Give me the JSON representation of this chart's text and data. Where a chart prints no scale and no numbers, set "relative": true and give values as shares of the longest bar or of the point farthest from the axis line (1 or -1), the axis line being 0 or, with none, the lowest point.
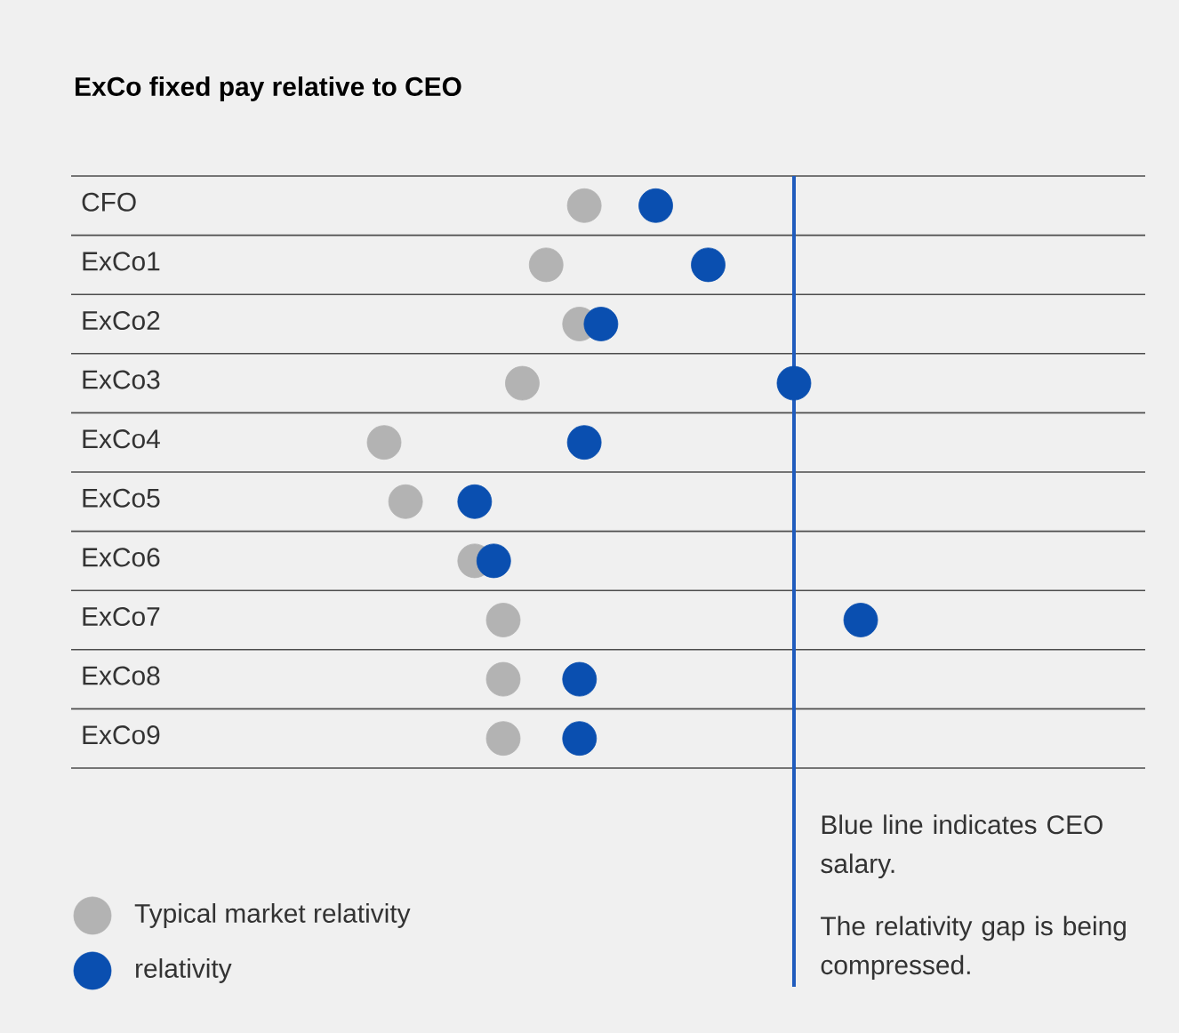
{
  "chart_data": {
    "type": "scatter",
    "orientation": "horizontal",
    "relative": true,
    "title": "ExCo fixed pay relative to CEO",
    "categories": [
      "CFO",
      "ExCo1",
      "ExCo2",
      "ExCo3",
      "ExCo4",
      "ExCo5",
      "ExCo6",
      "ExCo7",
      "ExCo8",
      "ExCo9"
    ],
    "series": [
      {
        "name": "Typical market relativity",
        "color": "#b3b3b3",
        "values": [
          0.42,
          0.34,
          0.41,
          0.29,
          0,
          0.045,
          0.19,
          0.25,
          0.25,
          0.25
        ]
      },
      {
        "name": "relativity",
        "color": "#0a4fb0",
        "values": [
          0.57,
          0.68,
          0.455,
          0.86,
          0.42,
          0.19,
          0.23,
          1,
          0.41,
          0.41
        ]
      }
    ],
    "ref_lines": [
      {
        "axis": "x",
        "value": 0.86,
        "color": "#1f5bbd"
      }
    ],
    "grid": "y",
    "legend": "bottom left",
    "marker": "circle",
    "annotations": [
      "Blue line indicates CEO salary.",
      "The relativity gap is being compressed."
    ]
  }
}
